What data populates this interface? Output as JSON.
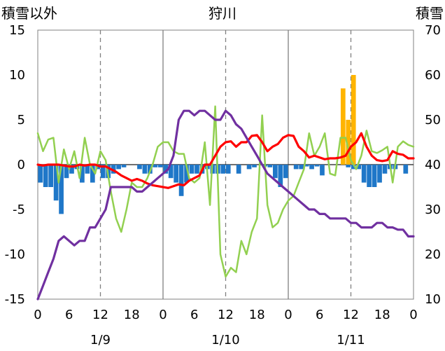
{
  "chart_data": {
    "type": "bar+line",
    "title": "狩川",
    "left_axis_label": "積雪以外",
    "right_axis_label": "積雪",
    "left_ylim": [
      -15,
      15
    ],
    "left_yticks": [
      -15,
      -10,
      -5,
      0,
      5,
      10,
      15
    ],
    "right_ylim": [
      10,
      70
    ],
    "right_yticks": [
      10,
      20,
      30,
      40,
      50,
      60,
      70
    ],
    "hour_ticks": [
      "0",
      "6",
      "12",
      "18",
      "0",
      "6",
      "12",
      "18",
      "0",
      "6",
      "12",
      "18",
      "0"
    ],
    "date_labels": [
      {
        "label": "1/9",
        "hour": 12
      },
      {
        "label": "1/10",
        "hour": 36
      },
      {
        "label": "1/11",
        "hour": 60
      }
    ],
    "x_range_hours": [
      0,
      72
    ],
    "grid": "dashed vertical at 12h offsets, solid vertical at day boundaries",
    "series": [
      {
        "name": "blue bars (left axis)",
        "type": "bar",
        "color": "#1f77c8",
        "values": [
          -2,
          -2.5,
          -2.5,
          -4,
          -5.5,
          -1.5,
          -1,
          -0.5,
          -2,
          -1,
          -2,
          -0.5,
          -1.5,
          -1.5,
          -1,
          -0.5,
          -0.3,
          0,
          0,
          -0.5,
          -1,
          -1,
          -0.3,
          -0.3,
          -1,
          -1.5,
          -2,
          -3.5,
          -2,
          -1,
          -1,
          -1,
          -0.5,
          -1,
          -1,
          -1,
          -1,
          0,
          -1,
          0,
          -0.5,
          -0.3,
          0,
          -0.2,
          -0.3,
          -1.5,
          -2.5,
          -1.5,
          0,
          -0.5,
          -0.5,
          -0.2,
          -0.5,
          -0.2,
          -1.2,
          0,
          0,
          0,
          0,
          -0.3,
          -0.5,
          -0.5,
          -2,
          -2.5,
          -2.5,
          -2,
          -1,
          -0.5,
          -0.5,
          0,
          -1,
          0
        ]
      },
      {
        "name": "orange bars (right axis)",
        "type": "bar",
        "color": "#ffb400",
        "values": [
          null,
          null,
          null,
          null,
          null,
          null,
          null,
          null,
          null,
          null,
          null,
          null,
          null,
          null,
          null,
          null,
          null,
          null,
          null,
          null,
          null,
          null,
          null,
          null,
          null,
          null,
          null,
          null,
          null,
          null,
          null,
          null,
          null,
          null,
          null,
          null,
          null,
          null,
          null,
          null,
          null,
          null,
          null,
          null,
          null,
          null,
          null,
          null,
          null,
          null,
          null,
          null,
          null,
          null,
          null,
          null,
          null,
          null,
          57,
          50,
          60,
          null,
          null,
          null,
          null,
          null,
          null,
          null,
          null,
          null,
          null,
          null
        ]
      },
      {
        "name": "red line (left axis)",
        "type": "line",
        "color": "#ff0000",
        "x": [
          0,
          1,
          2,
          3,
          4,
          5,
          6,
          7,
          8,
          9,
          10,
          11,
          12,
          13,
          14,
          15,
          16,
          17,
          18,
          19,
          20,
          21,
          22,
          23,
          24,
          25,
          26,
          27,
          28,
          29,
          30,
          31,
          32,
          33,
          34,
          35,
          36,
          37,
          38,
          39,
          40,
          41,
          42,
          43,
          44,
          45,
          46,
          47,
          48,
          49,
          50,
          51,
          52,
          53,
          54,
          55,
          56,
          57,
          58,
          59,
          60,
          61,
          62,
          63,
          64,
          65,
          66,
          67,
          68,
          69,
          70,
          71,
          72
        ],
        "values": [
          0,
          -0.1,
          0,
          0,
          0,
          -0.1,
          -0.2,
          -0.2,
          0,
          -0.1,
          0,
          0,
          -0.2,
          -0.2,
          -0.5,
          -0.8,
          -1.2,
          -1.5,
          -1.8,
          -1.6,
          -1.8,
          -2.1,
          -2.3,
          -2.4,
          -2.5,
          -2.6,
          -2.4,
          -2.2,
          -2.3,
          -1.8,
          -1.5,
          -1.2,
          0,
          0,
          1,
          2,
          2.5,
          2.6,
          2,
          2.5,
          2.5,
          3.2,
          3.3,
          2.5,
          1.5,
          2,
          2.3,
          3,
          3.3,
          3.2,
          2,
          1.5,
          0.8,
          1,
          0.8,
          0.6,
          0.7,
          0.7,
          0.8,
          1,
          2,
          2.5,
          3.5,
          2,
          1,
          0.5,
          0.4,
          0.5,
          1.5,
          1.2,
          1.1,
          0.7,
          0.7
        ]
      },
      {
        "name": "green line (left axis)",
        "type": "line",
        "color": "#92d050",
        "x": [
          0,
          1,
          2,
          3,
          4,
          5,
          6,
          7,
          8,
          9,
          10,
          11,
          12,
          13,
          14,
          15,
          16,
          17,
          18,
          19,
          20,
          21,
          22,
          23,
          24,
          25,
          26,
          27,
          28,
          29,
          30,
          31,
          32,
          33,
          34,
          35,
          36,
          37,
          38,
          39,
          40,
          41,
          42,
          43,
          44,
          45,
          46,
          47,
          48,
          49,
          50,
          51,
          52,
          53,
          54,
          55,
          56,
          57,
          58,
          59,
          60,
          61,
          62,
          63,
          64,
          65,
          66,
          67,
          68,
          69,
          70,
          71,
          72
        ],
        "values": [
          3.5,
          1.5,
          2.8,
          3,
          -2,
          1.7,
          -0.5,
          1.5,
          -1.5,
          3,
          0,
          -1,
          1.5,
          0.5,
          -3,
          -6,
          -7.5,
          -5,
          -2,
          -2.5,
          -2.5,
          -1.5,
          0,
          2,
          2.5,
          2.5,
          1.5,
          1.2,
          1.2,
          -1.5,
          -2,
          -1.5,
          2.5,
          -4.5,
          6.5,
          -10,
          -12.5,
          -11.5,
          -12,
          -8.5,
          -10,
          -7.5,
          -6,
          5.5,
          -4.5,
          -7,
          -6.5,
          -5,
          -4,
          -3.5,
          -2,
          -0.5,
          3.5,
          1,
          2,
          3.5,
          -1,
          -1.2,
          3,
          3,
          0.5,
          -0.5,
          1,
          3.8,
          1.5,
          1.3,
          1.6,
          2,
          -2,
          2,
          2.6,
          2.2,
          2
        ]
      },
      {
        "name": "purple line (right axis)",
        "type": "line",
        "color": "#7030a0",
        "x": [
          0,
          1,
          2,
          3,
          4,
          5,
          6,
          7,
          8,
          9,
          10,
          11,
          12,
          13,
          14,
          15,
          16,
          17,
          18,
          19,
          20,
          21,
          22,
          23,
          24,
          25,
          26,
          27,
          28,
          29,
          30,
          31,
          32,
          33,
          34,
          35,
          36,
          37,
          38,
          39,
          40,
          41,
          42,
          43,
          44,
          45,
          46,
          47,
          48,
          49,
          50,
          51,
          52,
          53,
          54,
          55,
          56,
          57,
          58,
          59,
          60,
          61,
          62,
          63,
          64,
          65,
          66,
          67,
          68,
          69,
          70,
          71,
          72
        ],
        "values": [
          10,
          13,
          16,
          19,
          23,
          24,
          23,
          22,
          23,
          23,
          26,
          26,
          28,
          30,
          35,
          35,
          35,
          35,
          35,
          34,
          34,
          35,
          36,
          37,
          38,
          39,
          42,
          50,
          52,
          52,
          51,
          52,
          52,
          51,
          50,
          50,
          52,
          51,
          49,
          48,
          46,
          44,
          42,
          40,
          38,
          37,
          36,
          35,
          34,
          33,
          32,
          31,
          30,
          30,
          29,
          29,
          28,
          28,
          28,
          28,
          27,
          27,
          26,
          26,
          26,
          27,
          27,
          26,
          26,
          25.5,
          25.5,
          24,
          24
        ]
      }
    ]
  }
}
